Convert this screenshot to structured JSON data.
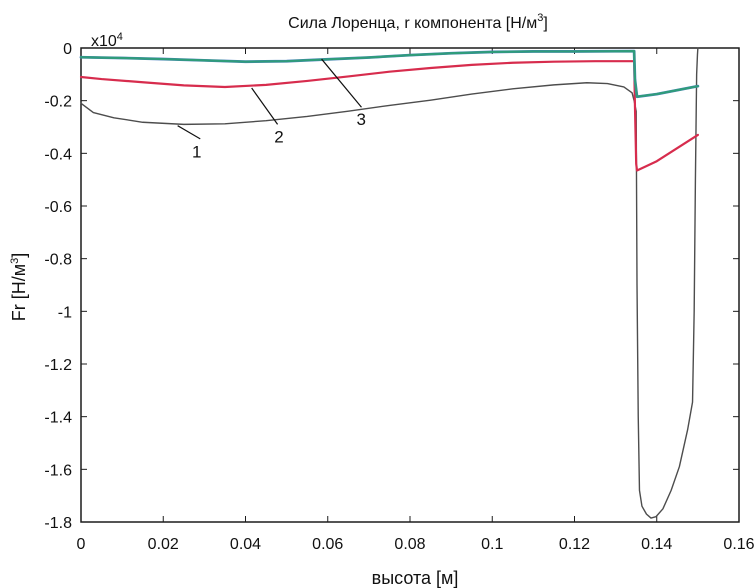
{
  "chart_data": {
    "type": "line",
    "title": "Сила Лоренца, r компонента [Н/м",
    "title_superscript": "3",
    "title_suffix": "]",
    "xlabel": "высота  [м]",
    "ylabel": "Fr [Н/м",
    "ylabel_superscript": "3",
    "ylabel_suffix": "]",
    "ylim": [
      -18000,
      0
    ],
    "xlim": [
      0,
      0.16
    ],
    "y_scale_prefix": "x10",
    "y_scale_exponent": "4",
    "x_ticks": [
      {
        "value": 0,
        "label": "0"
      },
      {
        "value": 0.02,
        "label": "0.02"
      },
      {
        "value": 0.04,
        "label": "0.04"
      },
      {
        "value": 0.06,
        "label": "0.06"
      },
      {
        "value": 0.08,
        "label": "0.08"
      },
      {
        "value": 0.1,
        "label": "0.1"
      },
      {
        "value": 0.12,
        "label": "0.12"
      },
      {
        "value": 0.14,
        "label": "0.14"
      },
      {
        "value": 0.16,
        "label": "0.16"
      }
    ],
    "y_ticks": [
      {
        "value": 0,
        "label": "0"
      },
      {
        "value": -2000,
        "label": "-0.2"
      },
      {
        "value": -4000,
        "label": "-0.4"
      },
      {
        "value": -6000,
        "label": "-0.6"
      },
      {
        "value": -8000,
        "label": "-0.8"
      },
      {
        "value": -10000,
        "label": "-1"
      },
      {
        "value": -12000,
        "label": "-1.2"
      },
      {
        "value": -14000,
        "label": "-1.4"
      },
      {
        "value": -16000,
        "label": "-1.6"
      },
      {
        "value": -18000,
        "label": "-1.8"
      }
    ],
    "grid": false,
    "legend": "none",
    "colors": {
      "axis": "#1c1c1c",
      "text": "#111111",
      "series1": "#4d4d4d",
      "series2": "#d72c4d",
      "series3": "#2f9c7a",
      "series3_accent": "#4a7fc0"
    },
    "series": [
      {
        "name": "1",
        "color": "#4d4d4d",
        "points": [
          [
            0,
            -2100
          ],
          [
            0.003,
            -2450
          ],
          [
            0.008,
            -2650
          ],
          [
            0.015,
            -2820
          ],
          [
            0.025,
            -2900
          ],
          [
            0.035,
            -2880
          ],
          [
            0.045,
            -2760
          ],
          [
            0.055,
            -2600
          ],
          [
            0.065,
            -2400
          ],
          [
            0.075,
            -2180
          ],
          [
            0.085,
            -1980
          ],
          [
            0.095,
            -1750
          ],
          [
            0.105,
            -1550
          ],
          [
            0.115,
            -1400
          ],
          [
            0.123,
            -1320
          ],
          [
            0.128,
            -1350
          ],
          [
            0.132,
            -1480
          ],
          [
            0.134,
            -1700
          ],
          [
            0.1345,
            -2000
          ],
          [
            0.135,
            -2400
          ],
          [
            0.1352,
            -9000
          ],
          [
            0.1355,
            -14000
          ],
          [
            0.1358,
            -16800
          ],
          [
            0.1364,
            -17400
          ],
          [
            0.1375,
            -17700
          ],
          [
            0.1386,
            -17850
          ],
          [
            0.1398,
            -17800
          ],
          [
            0.1415,
            -17500
          ],
          [
            0.1435,
            -16800
          ],
          [
            0.1455,
            -15900
          ],
          [
            0.1475,
            -14500
          ],
          [
            0.1487,
            -13450
          ],
          [
            0.1491,
            -10000
          ],
          [
            0.1494,
            -5000
          ],
          [
            0.1497,
            -1000
          ],
          [
            0.1499,
            -250
          ],
          [
            0.15,
            0
          ]
        ]
      },
      {
        "name": "2",
        "color": "#d72c4d",
        "points": [
          [
            0,
            -1100
          ],
          [
            0.005,
            -1180
          ],
          [
            0.015,
            -1300
          ],
          [
            0.025,
            -1420
          ],
          [
            0.035,
            -1480
          ],
          [
            0.045,
            -1400
          ],
          [
            0.055,
            -1250
          ],
          [
            0.065,
            -1080
          ],
          [
            0.075,
            -900
          ],
          [
            0.085,
            -760
          ],
          [
            0.095,
            -640
          ],
          [
            0.105,
            -560
          ],
          [
            0.115,
            -520
          ],
          [
            0.125,
            -500
          ],
          [
            0.1345,
            -500
          ],
          [
            0.1347,
            -2200
          ],
          [
            0.135,
            -4400
          ],
          [
            0.1352,
            -4650
          ],
          [
            0.14,
            -4300
          ],
          [
            0.145,
            -3800
          ],
          [
            0.15,
            -3300
          ]
        ]
      },
      {
        "name": "3",
        "color": "#2f9c7a",
        "points": [
          [
            0,
            -350
          ],
          [
            0.01,
            -380
          ],
          [
            0.02,
            -420
          ],
          [
            0.03,
            -470
          ],
          [
            0.04,
            -520
          ],
          [
            0.05,
            -500
          ],
          [
            0.06,
            -430
          ],
          [
            0.07,
            -360
          ],
          [
            0.08,
            -270
          ],
          [
            0.09,
            -200
          ],
          [
            0.1,
            -150
          ],
          [
            0.11,
            -130
          ],
          [
            0.12,
            -130
          ],
          [
            0.1345,
            -120
          ],
          [
            0.1347,
            -1200
          ],
          [
            0.1352,
            -1850
          ],
          [
            0.14,
            -1750
          ],
          [
            0.145,
            -1600
          ],
          [
            0.15,
            -1450
          ]
        ]
      }
    ],
    "curve_labels": [
      {
        "text": "1",
        "x": 0.027,
        "y": -4150
      },
      {
        "text": "2",
        "x": 0.047,
        "y": -3580
      },
      {
        "text": "3",
        "x": 0.067,
        "y": -2930
      }
    ],
    "leaders": [
      {
        "x1": 0.0235,
        "y1": -2950,
        "x2": 0.029,
        "y2": -3450
      },
      {
        "x1": 0.0415,
        "y1": -1520,
        "x2": 0.0478,
        "y2": -2900
      },
      {
        "x1": 0.0585,
        "y1": -420,
        "x2": 0.0682,
        "y2": -2250
      }
    ]
  }
}
